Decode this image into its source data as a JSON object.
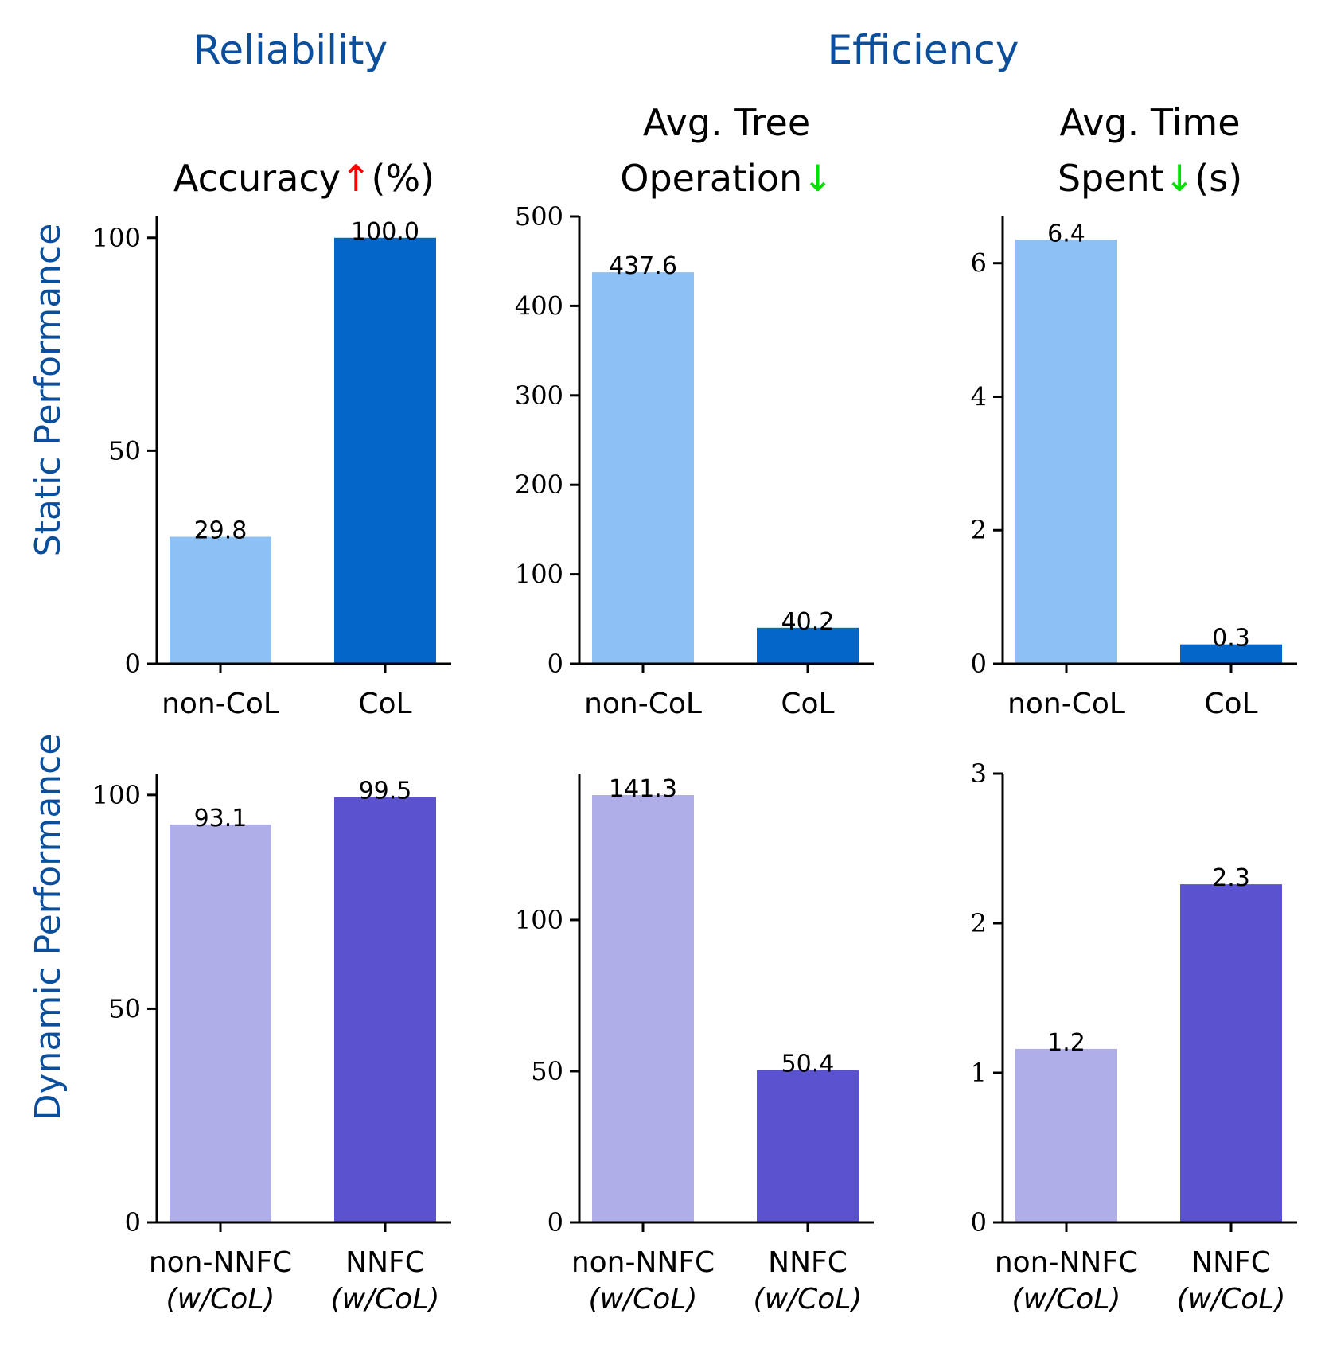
{
  "header": {
    "reliability": "Reliability",
    "efficiency": "Efficiency",
    "row_labels": [
      "Static Performance",
      "Dynamic Performance"
    ]
  },
  "colors": {
    "header": "#0b4f9c",
    "static_light": "#8dc0f5",
    "static_dark": "#0566c9",
    "dynamic_light": "#b0aee8",
    "dynamic_dark": "#5a52cf",
    "arrow_up": "#ff0000",
    "arrow_down": "#00e000"
  },
  "chart_data": [
    {
      "type": "bar",
      "row": 0,
      "col": 0,
      "title_lines": [
        {
          "text": "Accuracy",
          "arrow": "↑",
          "suffix": "(%)"
        }
      ],
      "categories": [
        {
          "main": "non-CoL",
          "sub": ""
        },
        {
          "main": "CoL",
          "sub": ""
        }
      ],
      "values": [
        29.8,
        100.0
      ],
      "value_labels": [
        "29.8",
        "100.0"
      ],
      "yticks": [
        {
          "v": 0,
          "label": "0"
        },
        {
          "v": 50,
          "label": "50"
        },
        {
          "v": 100,
          "label": "100"
        }
      ],
      "ylim": [
        0,
        105
      ]
    },
    {
      "type": "bar",
      "row": 0,
      "col": 1,
      "title_lines": [
        {
          "text": "Avg.  Tree",
          "arrow": "",
          "suffix": ""
        },
        {
          "text": "Operation",
          "arrow": "↓",
          "suffix": ""
        }
      ],
      "categories": [
        {
          "main": "non-CoL",
          "sub": ""
        },
        {
          "main": "CoL",
          "sub": ""
        }
      ],
      "values": [
        437.6,
        40.2
      ],
      "value_labels": [
        "437.6",
        "40.2"
      ],
      "yticks": [
        {
          "v": 0,
          "label": "0"
        },
        {
          "v": 100,
          "label": "100"
        },
        {
          "v": 200,
          "label": "200"
        },
        {
          "v": 300,
          "label": "300"
        },
        {
          "v": 400,
          "label": "400"
        },
        {
          "v": 500,
          "label": "500"
        }
      ],
      "ylim": [
        0,
        500
      ]
    },
    {
      "type": "bar",
      "row": 0,
      "col": 2,
      "title_lines": [
        {
          "text": "Avg.  Time",
          "arrow": "",
          "suffix": ""
        },
        {
          "text": "Spent",
          "arrow": "↓",
          "suffix": "(s)"
        }
      ],
      "categories": [
        {
          "main": "non-CoL",
          "sub": ""
        },
        {
          "main": "CoL",
          "sub": ""
        }
      ],
      "values": [
        6.35,
        0.29
      ],
      "value_labels": [
        "6.4",
        "0.3"
      ],
      "yticks": [
        {
          "v": 0,
          "label": "0"
        },
        {
          "v": 2,
          "label": "2"
        },
        {
          "v": 4,
          "label": "4"
        },
        {
          "v": 6,
          "label": "6"
        }
      ],
      "ylim": [
        0,
        6.7
      ]
    },
    {
      "type": "bar",
      "row": 1,
      "col": 0,
      "title_lines": [],
      "categories": [
        {
          "main": "non-NNFC",
          "sub": "(w/CoL)"
        },
        {
          "main": "NNFC",
          "sub": "(w/CoL)"
        }
      ],
      "values": [
        93.1,
        99.5
      ],
      "value_labels": [
        "93.1",
        "99.5"
      ],
      "yticks": [
        {
          "v": 0,
          "label": "0"
        },
        {
          "v": 50,
          "label": "50"
        },
        {
          "v": 100,
          "label": "100"
        }
      ],
      "ylim": [
        0,
        105
      ]
    },
    {
      "type": "bar",
      "row": 1,
      "col": 1,
      "title_lines": [],
      "categories": [
        {
          "main": "non-NNFC",
          "sub": "(w/CoL)"
        },
        {
          "main": "NNFC",
          "sub": "(w/CoL)"
        }
      ],
      "values": [
        141.3,
        50.4
      ],
      "value_labels": [
        "141.3",
        "50.4"
      ],
      "yticks": [
        {
          "v": 0,
          "label": "0"
        },
        {
          "v": 50,
          "label": "50"
        },
        {
          "v": 100,
          "label": "100"
        }
      ],
      "ylim": [
        0,
        148.4
      ]
    },
    {
      "type": "bar",
      "row": 1,
      "col": 2,
      "title_lines": [],
      "categories": [
        {
          "main": "non-NNFC",
          "sub": "(w/CoL)"
        },
        {
          "main": "NNFC",
          "sub": "(w/CoL)"
        }
      ],
      "values": [
        1.16,
        2.26
      ],
      "value_labels": [
        "1.2",
        "2.3"
      ],
      "yticks": [
        {
          "v": 0,
          "label": "0"
        },
        {
          "v": 1,
          "label": "1"
        },
        {
          "v": 2,
          "label": "2"
        },
        {
          "v": 3,
          "label": "3"
        }
      ],
      "ylim": [
        0,
        3
      ]
    }
  ]
}
